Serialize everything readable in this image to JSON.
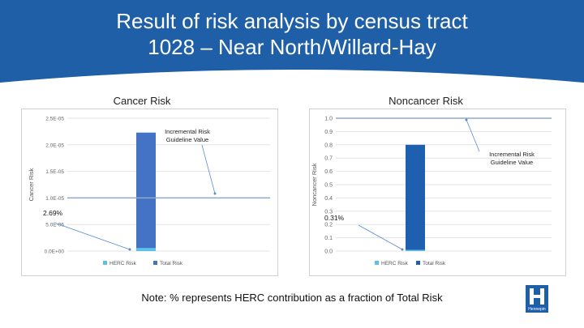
{
  "slide": {
    "title_line1": "Result of risk analysis by census tract",
    "title_line2": "1028 – Near North/Willard-Hay",
    "note": "Note: % represents HERC contribution as a fraction of Total Risk",
    "logo_text": "Hennepin",
    "colors": {
      "banner": "#1f5fa8",
      "herc": "#5bc0eb",
      "total_cancer": "#4472c4",
      "total_noncancer": "#1f5fb0",
      "guideline": "#8eaacb"
    }
  },
  "chart_data": [
    {
      "type": "bar",
      "title": "Cancer Risk",
      "ylabel": "Cancer Risk",
      "ylim": [
        0,
        2.5e-05
      ],
      "ticks": [
        0,
        5e-06,
        1e-05,
        1.5e-05,
        2e-05,
        2.5e-05
      ],
      "tick_labels": [
        "0.0E+00",
        "5.0E-06",
        "1.0E-05",
        "1.5E-05",
        "2.0E-05",
        "2.5E-05"
      ],
      "series": [
        {
          "name": "HERC Risk",
          "value": 6e-07
        },
        {
          "name": "Total Risk",
          "value": 2.23e-05
        }
      ],
      "guideline": {
        "value": 1e-05,
        "label_line1": "Incremental Risk",
        "label_line2": "Guideline Value"
      },
      "annotation": "2.69%",
      "grid": true,
      "legend": "bottom"
    },
    {
      "type": "bar",
      "title": "Noncancer Risk",
      "ylabel": "Noncancer Risk",
      "ylim": [
        0,
        1.0
      ],
      "ticks": [
        0,
        0.1,
        0.2,
        0.3,
        0.4,
        0.5,
        0.6,
        0.7,
        0.8,
        0.9,
        1.0
      ],
      "tick_labels": [
        "0.0",
        "0.1",
        "0.2",
        "0.3",
        "0.4",
        "0.5",
        "0.6",
        "0.7",
        "0.8",
        "0.9",
        "1.0"
      ],
      "series": [
        {
          "name": "HERC Risk",
          "value": 0.0025
        },
        {
          "name": "Total Risk",
          "value": 0.8
        }
      ],
      "guideline": {
        "value": 1.0,
        "label_line1": "Incremental Risk",
        "label_line2": "Guideline Value"
      },
      "annotation": "0.31%",
      "grid": true,
      "legend": "bottom"
    }
  ]
}
